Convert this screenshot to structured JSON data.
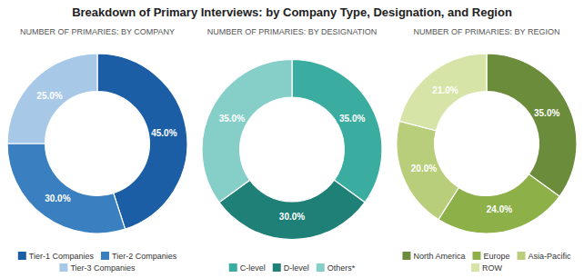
{
  "chart_data": [
    {
      "type": "donut",
      "title": "Breakdown of Primary Interviews: by Company Type, Designation, and Region",
      "subtitle": "NUMBER OF PRIMARIES: BY COMPANY",
      "categories": [
        "Tier-1 Companies",
        "Tier-2 Companies",
        "Tier-3 Companies"
      ],
      "values": [
        45.0,
        30.0,
        25.0
      ],
      "value_labels": [
        "45.0%",
        "30.0%",
        "25.0%"
      ],
      "colors": [
        "#1B5EA6",
        "#3A80C1",
        "#A8C8E8"
      ],
      "data_labels": true,
      "legend": "bottom"
    },
    {
      "type": "donut",
      "subtitle": "NUMBER OF PRIMARIES: BY DESIGNATION",
      "categories": [
        "C-level",
        "D-level",
        "Others*"
      ],
      "values": [
        35.0,
        30.0,
        35.0
      ],
      "value_labels": [
        "35.0%",
        "30.0%",
        "35.0%"
      ],
      "colors": [
        "#3BADA0",
        "#1F8077",
        "#86CFC8"
      ],
      "data_labels": true,
      "legend": "bottom"
    },
    {
      "type": "donut",
      "subtitle": "NUMBER OF PRIMARIES: BY REGION",
      "categories": [
        "North America",
        "Europe",
        "Asia-Pacific",
        "ROW"
      ],
      "values": [
        35.0,
        24.0,
        20.0,
        21.0
      ],
      "value_labels": [
        "35.0%",
        "24.0%",
        "20.0%",
        "21.0%"
      ],
      "colors": [
        "#6B8C3A",
        "#8DB048",
        "#B8CE7A",
        "#D6E4A8"
      ],
      "data_labels": true,
      "legend": "bottom"
    }
  ]
}
